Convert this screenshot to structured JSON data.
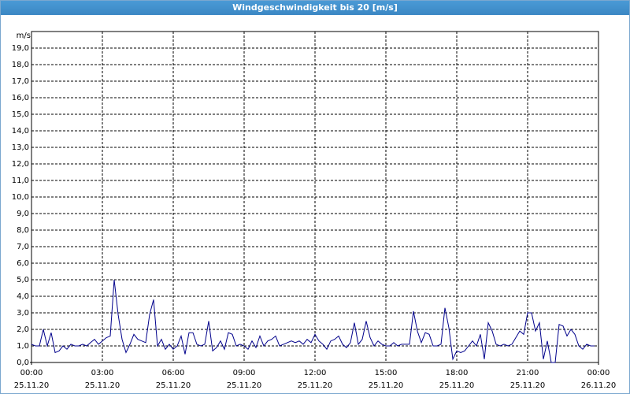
{
  "chart_data": {
    "type": "line",
    "title": "Windgeschwindigkeit bis 20 [m/s]",
    "y_label": "m/s",
    "x": [
      0,
      10,
      20,
      30,
      40,
      50,
      60,
      70,
      80,
      90,
      100,
      110,
      120,
      130,
      140,
      150,
      160,
      170,
      180,
      190,
      200,
      210,
      220,
      230,
      240,
      250,
      260,
      270,
      280,
      290,
      300,
      310,
      320,
      330,
      340,
      350,
      360,
      370,
      380,
      390,
      400,
      410,
      420,
      430,
      440,
      450,
      460,
      470,
      480,
      490,
      500,
      510,
      520,
      530,
      540,
      550,
      560,
      570,
      580,
      590,
      600,
      610,
      620,
      630,
      640,
      650,
      660,
      670,
      680,
      690,
      700,
      710,
      720,
      730,
      740,
      750,
      760,
      770,
      780,
      790,
      800,
      810,
      820,
      830,
      840,
      850,
      860,
      870,
      880,
      890,
      900,
      910,
      920,
      930,
      940,
      950,
      960,
      970,
      980,
      990,
      1000,
      1010,
      1020,
      1030,
      1040,
      1050,
      1060,
      1070,
      1080,
      1090,
      1100,
      1110,
      1120,
      1130,
      1140,
      1150,
      1160,
      1170,
      1180,
      1190,
      1200,
      1210,
      1220,
      1230,
      1240,
      1250,
      1260,
      1270,
      1280,
      1290,
      1300,
      1310,
      1320,
      1330,
      1340,
      1350,
      1360,
      1370,
      1380,
      1390,
      1400,
      1410,
      1420,
      1430
    ],
    "series": [
      {
        "color": "#00008b",
        "values": [
          1.1,
          1.0,
          1.0,
          2.0,
          1.0,
          1.8,
          0.6,
          0.7,
          1.0,
          0.8,
          1.1,
          1.0,
          1.0,
          1.1,
          1.0,
          1.2,
          1.4,
          1.1,
          1.3,
          1.5,
          1.6,
          5.0,
          2.9,
          1.4,
          0.6,
          1.1,
          1.7,
          1.4,
          1.3,
          1.2,
          2.9,
          3.8,
          1.0,
          1.4,
          0.8,
          1.1,
          0.8,
          1.0,
          1.6,
          0.5,
          1.8,
          1.8,
          1.1,
          1.0,
          1.1,
          2.5,
          0.7,
          0.9,
          1.3,
          0.8,
          1.8,
          1.7,
          1.0,
          1.1,
          1.0,
          0.8,
          1.3,
          0.9,
          1.6,
          1.0,
          1.3,
          1.4,
          1.6,
          1.0,
          1.1,
          1.2,
          1.3,
          1.2,
          1.3,
          1.1,
          1.4,
          1.2,
          1.7,
          1.3,
          1.1,
          0.8,
          1.3,
          1.4,
          1.6,
          1.1,
          0.9,
          1.2,
          2.4,
          1.1,
          1.4,
          2.5,
          1.5,
          1.0,
          1.3,
          1.1,
          1.0,
          1.0,
          1.2,
          1.0,
          1.1,
          1.1,
          1.1,
          3.1,
          1.9,
          1.2,
          1.8,
          1.7,
          1.0,
          1.0,
          1.1,
          3.3,
          2.1,
          0.2,
          0.7,
          0.6,
          0.7,
          1.0,
          1.3,
          1.0,
          1.7,
          0.2,
          2.4,
          1.9,
          1.1,
          1.0,
          1.1,
          1.0,
          1.1,
          1.5,
          1.9,
          1.7,
          3.0,
          3.0,
          1.9,
          2.4,
          0.2,
          1.3,
          0,
          0,
          2.3,
          2.2,
          1.6,
          2.0,
          1.7,
          1.0,
          0.8,
          1.1,
          1.0,
          1.0
        ]
      }
    ],
    "xlim": [
      0,
      1440
    ],
    "xticks": [
      {
        "value": 0,
        "label": "00:00"
      },
      {
        "value": 180,
        "label": "03:00"
      },
      {
        "value": 360,
        "label": "06:00"
      },
      {
        "value": 540,
        "label": "09:00"
      },
      {
        "value": 720,
        "label": "12:00"
      },
      {
        "value": 900,
        "label": "15:00"
      },
      {
        "value": 1080,
        "label": "18:00"
      },
      {
        "value": 1260,
        "label": "21:00"
      },
      {
        "value": 1440,
        "label": "00:00"
      }
    ],
    "xtick_dates": [
      "25.11.20",
      "25.11.20",
      "25.11.20",
      "25.11.20",
      "25.11.20",
      "25.11.20",
      "25.11.20",
      "25.11.20",
      "26.11.20"
    ],
    "ylim": [
      0,
      20
    ],
    "yticks": [
      {
        "value": 0,
        "label": "0,0"
      },
      {
        "value": 1,
        "label": "1,0"
      },
      {
        "value": 2,
        "label": "2,0"
      },
      {
        "value": 3,
        "label": "3,0"
      },
      {
        "value": 4,
        "label": "4,0"
      },
      {
        "value": 5,
        "label": "5,0"
      },
      {
        "value": 6,
        "label": "6,0"
      },
      {
        "value": 7,
        "label": "7,0"
      },
      {
        "value": 8,
        "label": "8,0"
      },
      {
        "value": 9,
        "label": "9,0"
      },
      {
        "value": 10,
        "label": "10,0"
      },
      {
        "value": 11,
        "label": "11,0"
      },
      {
        "value": 12,
        "label": "12,0"
      },
      {
        "value": 13,
        "label": "13,0"
      },
      {
        "value": 14,
        "label": "14,0"
      },
      {
        "value": 15,
        "label": "15,0"
      },
      {
        "value": 16,
        "label": "16,0"
      },
      {
        "value": 17,
        "label": "17,0"
      },
      {
        "value": 18,
        "label": "18,0"
      },
      {
        "value": 19,
        "label": "19,0"
      }
    ],
    "grid": true
  }
}
